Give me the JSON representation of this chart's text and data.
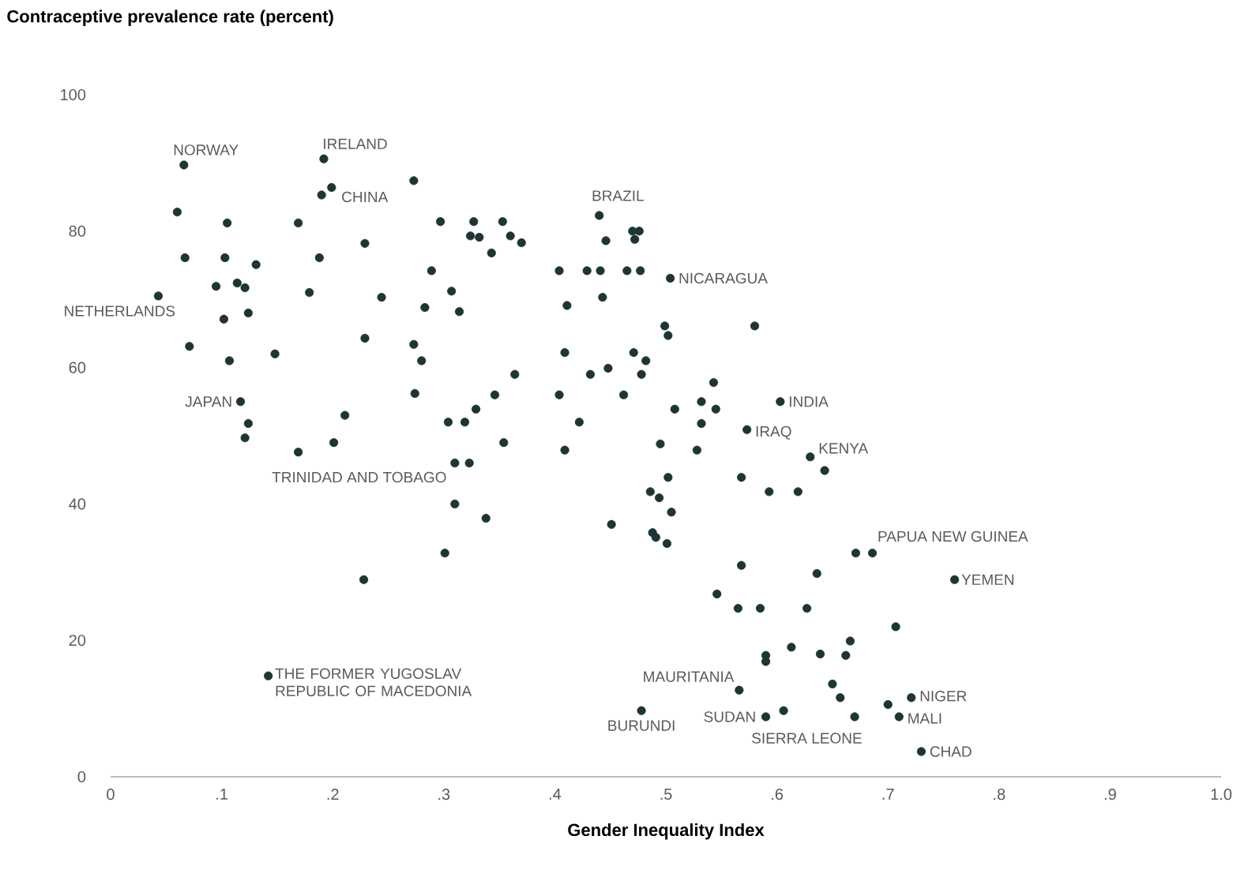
{
  "chart_data": {
    "type": "scatter",
    "title": "Contraceptive prevalence rate (percent)",
    "xlabel": "Gender Inequality Index",
    "x": [
      0.066,
      0.06,
      0.067,
      0.043,
      0.071,
      0.105,
      0.103,
      0.131,
      0.114,
      0.121,
      0.095,
      0.124,
      0.102,
      0.107,
      0.148,
      0.117,
      0.124,
      0.121,
      0.169,
      0.188,
      0.179,
      0.192,
      0.19,
      0.199,
      0.229,
      0.273,
      0.229,
      0.244,
      0.211,
      0.201,
      0.169,
      0.297,
      0.327,
      0.353,
      0.324,
      0.332,
      0.36,
      0.37,
      0.343,
      0.289,
      0.283,
      0.307,
      0.314,
      0.273,
      0.28,
      0.274,
      0.304,
      0.319,
      0.329,
      0.346,
      0.364,
      0.354,
      0.404,
      0.411,
      0.409,
      0.432,
      0.404,
      0.422,
      0.409,
      0.31,
      0.323,
      0.31,
      0.338,
      0.301,
      0.228,
      0.44,
      0.446,
      0.47,
      0.476,
      0.472,
      0.429,
      0.441,
      0.465,
      0.477,
      0.443,
      0.504,
      0.499,
      0.502,
      0.58,
      0.471,
      0.482,
      0.448,
      0.478,
      0.543,
      0.462,
      0.508,
      0.532,
      0.545,
      0.532,
      0.603,
      0.573,
      0.495,
      0.528,
      0.63,
      0.643,
      0.568,
      0.502,
      0.593,
      0.619,
      0.486,
      0.494,
      0.505,
      0.451,
      0.488,
      0.491,
      0.501,
      0.671,
      0.686,
      0.76,
      0.568,
      0.636,
      0.546,
      0.565,
      0.585,
      0.627,
      0.707,
      0.666,
      0.662,
      0.613,
      0.639,
      0.59,
      0.59,
      0.566,
      0.606,
      0.59,
      0.65,
      0.657,
      0.67,
      0.7,
      0.721,
      0.71,
      0.73,
      0.478,
      0.142
    ],
    "values": [
      89.7,
      82.8,
      76.1,
      70.5,
      63.1,
      81.2,
      76.1,
      75.1,
      72.4,
      71.7,
      71.9,
      68.0,
      67.1,
      61.0,
      62.0,
      55.0,
      51.8,
      49.7,
      81.2,
      76.1,
      71.0,
      90.6,
      85.3,
      86.4,
      78.2,
      87.4,
      64.3,
      70.3,
      53.0,
      49.0,
      47.6,
      81.4,
      81.4,
      81.4,
      79.3,
      79.1,
      79.3,
      78.3,
      76.8,
      74.2,
      68.8,
      71.2,
      68.2,
      63.4,
      61.0,
      56.2,
      52.0,
      52.0,
      53.9,
      56.0,
      59.0,
      49.0,
      74.2,
      69.1,
      62.2,
      59.0,
      56.0,
      52.0,
      47.9,
      46.0,
      46.0,
      40.0,
      37.9,
      32.8,
      28.9,
      82.3,
      78.6,
      80.0,
      80.0,
      78.8,
      74.2,
      74.2,
      74.2,
      74.2,
      70.3,
      73.1,
      66.1,
      64.7,
      66.1,
      62.2,
      61.0,
      59.9,
      59.0,
      57.8,
      56.0,
      53.9,
      55.0,
      53.9,
      51.8,
      55.0,
      50.9,
      48.8,
      47.9,
      46.9,
      44.9,
      43.9,
      43.9,
      41.8,
      41.8,
      41.8,
      40.9,
      38.8,
      37.0,
      35.8,
      35.1,
      34.2,
      32.8,
      32.8,
      28.9,
      31.0,
      29.8,
      26.8,
      24.7,
      24.7,
      24.7,
      22.0,
      19.9,
      17.8,
      19.0,
      18.0,
      17.8,
      16.9,
      12.7,
      9.7,
      8.8,
      13.6,
      11.6,
      8.8,
      10.6,
      11.6,
      8.8,
      3.7,
      9.7,
      14.8
    ],
    "color": "#1f3535",
    "xlim": [
      0,
      1.0
    ],
    "ylim": [
      0,
      100
    ],
    "xticks": [
      0,
      {
        "value": 0.1,
        "label": ".1"
      },
      {
        "value": 0.2,
        "label": ".2"
      },
      {
        "value": 0.3,
        "label": ".3"
      },
      {
        "value": 0.4,
        "label": ".4"
      },
      {
        "value": 0.5,
        "label": ".5"
      },
      {
        "value": 0.6,
        "label": ".6"
      },
      {
        "value": 0.7,
        "label": ".7"
      },
      {
        "value": 0.8,
        "label": ".8"
      },
      {
        "value": 0.9,
        "label": ".9"
      },
      {
        "value": 1.0,
        "label": "1.0"
      }
    ],
    "yticks": [
      0,
      20,
      40,
      60,
      80,
      100
    ],
    "grid": false,
    "annotations": [
      {
        "text": "NORWAY",
        "x": 0.066,
        "y": 89.7
      },
      {
        "text": "IRELAND",
        "x": 0.192,
        "y": 90.6
      },
      {
        "text": "CHINA",
        "x": 0.199,
        "y": 86.4
      },
      {
        "text": "BRAZIL",
        "x": 0.44,
        "y": 82.3
      },
      {
        "text": "NICARAGUA",
        "x": 0.504,
        "y": 73.1
      },
      {
        "text": "NETHERLANDS",
        "x": 0.043,
        "y": 70.5
      },
      {
        "text": "JAPAN",
        "x": 0.117,
        "y": 55.0
      },
      {
        "text": "INDIA",
        "x": 0.603,
        "y": 55.0
      },
      {
        "text": "IRAQ",
        "x": 0.573,
        "y": 50.9
      },
      {
        "text": "KENYA",
        "x": 0.63,
        "y": 46.9
      },
      {
        "text": "TRINIDAD AND TOBAGO",
        "x": 0.31,
        "y": 46.0
      },
      {
        "text": "PAPUA NEW GUINEA",
        "x": 0.686,
        "y": 32.8
      },
      {
        "text": "YEMEN",
        "x": 0.76,
        "y": 28.9
      },
      {
        "text": "THE FORMER YUGOSLAV REPUBLIC OF MACEDONIA",
        "x": 0.142,
        "y": 14.8
      },
      {
        "text": "MAURITANIA",
        "x": 0.566,
        "y": 12.7
      },
      {
        "text": "BURUNDI",
        "x": 0.478,
        "y": 9.7
      },
      {
        "text": "SUDAN",
        "x": 0.59,
        "y": 8.8
      },
      {
        "text": "SIERRA LEONE",
        "x": 0.67,
        "y": 8.8
      },
      {
        "text": "NIGER",
        "x": 0.721,
        "y": 11.6
      },
      {
        "text": "MALI",
        "x": 0.71,
        "y": 8.8
      },
      {
        "text": "CHAD",
        "x": 0.73,
        "y": 3.7
      }
    ]
  }
}
